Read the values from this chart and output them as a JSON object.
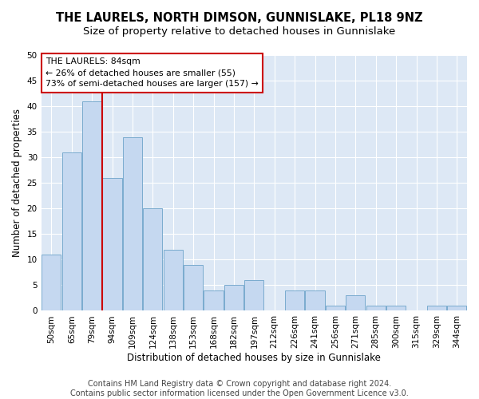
{
  "title": "THE LAURELS, NORTH DIMSON, GUNNISLAKE, PL18 9NZ",
  "subtitle": "Size of property relative to detached houses in Gunnislake",
  "xlabel": "Distribution of detached houses by size in Gunnislake",
  "ylabel": "Number of detached properties",
  "categories": [
    "50sqm",
    "65sqm",
    "79sqm",
    "94sqm",
    "109sqm",
    "124sqm",
    "138sqm",
    "153sqm",
    "168sqm",
    "182sqm",
    "197sqm",
    "212sqm",
    "226sqm",
    "241sqm",
    "256sqm",
    "271sqm",
    "285sqm",
    "300sqm",
    "315sqm",
    "329sqm",
    "344sqm"
  ],
  "values": [
    11,
    31,
    41,
    26,
    34,
    20,
    12,
    9,
    4,
    5,
    6,
    0,
    4,
    4,
    1,
    3,
    1,
    1,
    0,
    1,
    1
  ],
  "bar_color": "#c5d8f0",
  "bar_edge_color": "#7aabce",
  "vline_color": "#cc0000",
  "vline_x": 2.5,
  "ylim": [
    0,
    50
  ],
  "yticks": [
    0,
    5,
    10,
    15,
    20,
    25,
    30,
    35,
    40,
    45,
    50
  ],
  "annotation_text": "THE LAURELS: 84sqm\n← 26% of detached houses are smaller (55)\n73% of semi-detached houses are larger (157) →",
  "annotation_box_color": "#ffffff",
  "annotation_box_edge_color": "#cc0000",
  "annotation_fontsize": 7.8,
  "title_fontsize": 10.5,
  "subtitle_fontsize": 9.5,
  "xlabel_fontsize": 8.5,
  "ylabel_fontsize": 8.5,
  "tick_fontsize": 7.5,
  "bg_color": "#dde8f5",
  "footer_line1": "Contains HM Land Registry data © Crown copyright and database right 2024.",
  "footer_line2": "Contains public sector information licensed under the Open Government Licence v3.0.",
  "footer_fontsize": 7.0
}
